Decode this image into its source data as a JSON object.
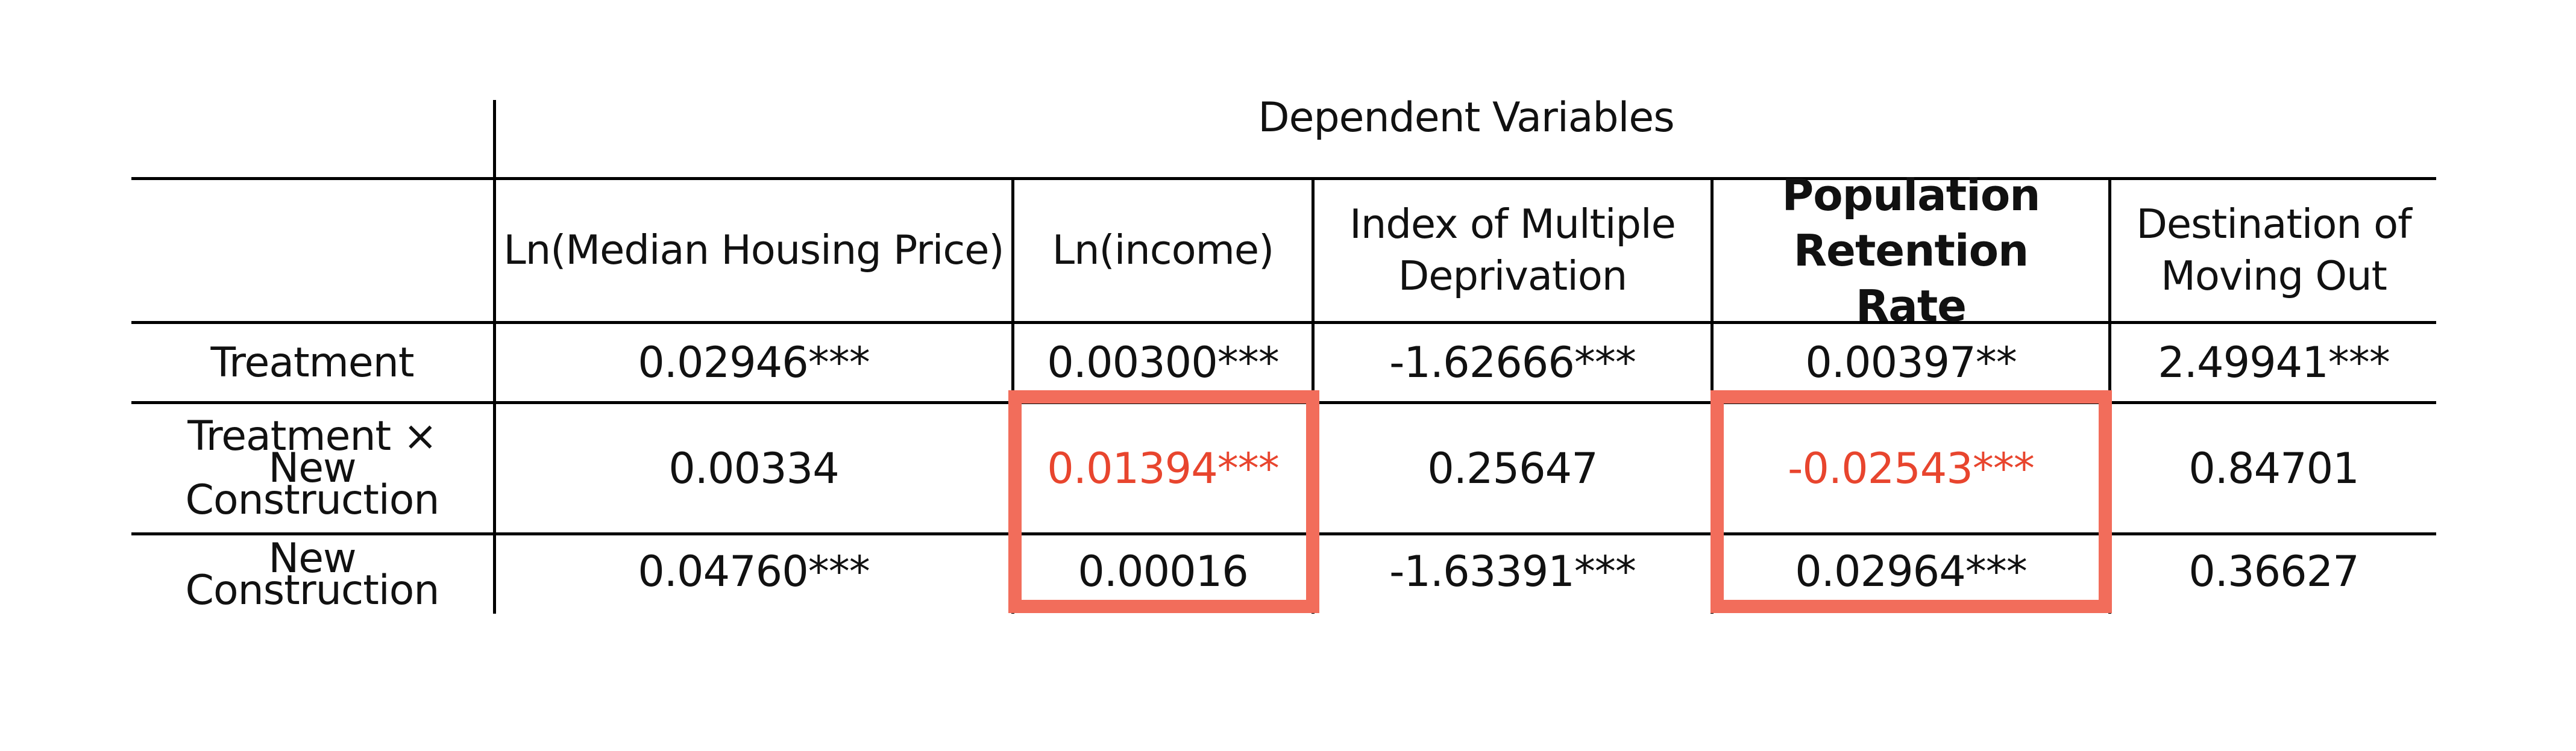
{
  "table": {
    "group_header": "Dependent Variables",
    "columns": [
      "Ln(Median Housing Price)",
      "Ln(income)",
      "Index of Multiple Deprivation",
      "Population Retention Rate",
      "Destination of Moving Out"
    ],
    "rows": [
      {
        "label": "Treatment",
        "values": [
          "0.02946***",
          "0.00300***",
          "-1.62666***",
          "0.00397**",
          "2.49941***"
        ]
      },
      {
        "label": "Treatment × New Construction",
        "values": [
          "0.00334",
          "0.01394***",
          "0.25647",
          "-0.02543***",
          "0.84701"
        ]
      },
      {
        "label": "New Construction",
        "values": [
          "0.04760***",
          "0.00016",
          "-1.63391***",
          "0.02964***",
          "0.36627"
        ]
      }
    ],
    "highlighted_columns": [
      "Ln(income)",
      "Population Retention Rate"
    ],
    "emphasized_column": "Population Retention Rate",
    "highlight_color": "#f26d5b",
    "highlight_text_color": "#e8452e"
  }
}
